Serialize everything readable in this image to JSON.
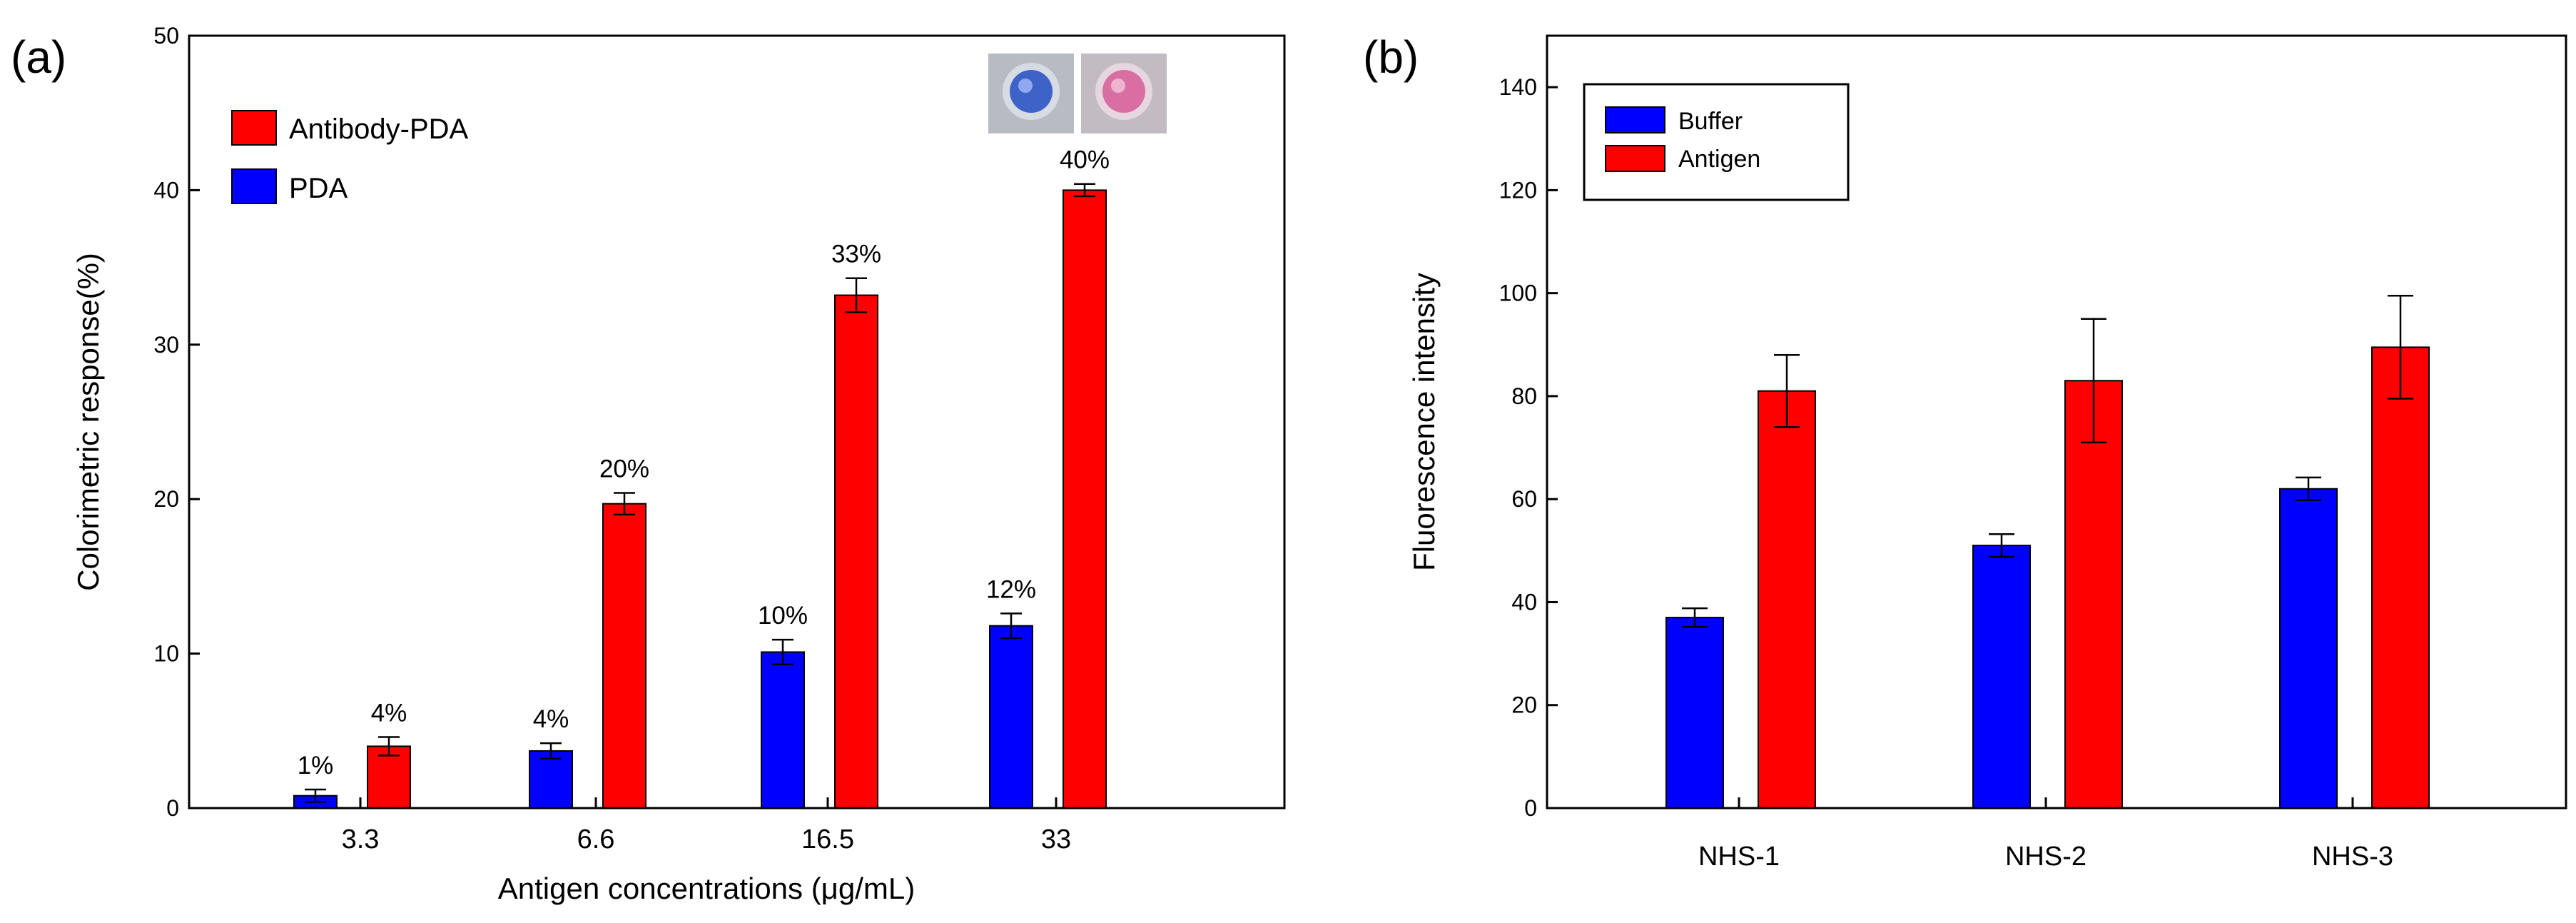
{
  "chart_data": [
    {
      "panel": "(a)",
      "type": "bar",
      "xlabel": "Antigen concentrations  (μg/mL)",
      "ylabel": "Colorimetric response(%)",
      "ylim": [
        0,
        50
      ],
      "yticks": [
        0,
        10,
        20,
        30,
        40,
        50
      ],
      "categories": [
        "3.3",
        "6.6",
        "16.5",
        "33"
      ],
      "series": [
        {
          "name": "PDA",
          "color": "#0000ff",
          "values": [
            0.8,
            3.7,
            10.1,
            11.8
          ],
          "errors": [
            0.4,
            0.5,
            0.8,
            0.8
          ],
          "labels": [
            "1%",
            "4%",
            "10%",
            "12%"
          ]
        },
        {
          "name": "Antibody-PDA",
          "color": "#ff0000",
          "values": [
            4.0,
            19.7,
            33.2,
            40.0
          ],
          "errors": [
            0.6,
            0.7,
            1.1,
            0.4
          ],
          "labels": [
            "4%",
            "20%",
            "33%",
            "40%"
          ]
        }
      ],
      "legend": [
        "Antibody-PDA",
        "PDA"
      ],
      "legend_position": "top-left",
      "inset": "photo of two wells: blue (PDA) and pink (Antibody-PDA)"
    },
    {
      "panel": "(b)",
      "type": "bar",
      "xlabel": "",
      "ylabel": "Fluorescence intensity",
      "ylim": [
        0,
        150
      ],
      "yticks": [
        0,
        20,
        40,
        60,
        80,
        100,
        120,
        140
      ],
      "categories": [
        "NHS-1",
        "NHS-2",
        "NHS-3"
      ],
      "series": [
        {
          "name": "Buffer",
          "color": "#0000ff",
          "values": [
            37,
            51,
            62
          ],
          "errors": [
            1.8,
            2.2,
            2.2
          ]
        },
        {
          "name": "Antigen",
          "color": "#ff0000",
          "values": [
            81,
            83,
            89.5
          ],
          "errors": [
            7,
            12,
            10
          ]
        }
      ],
      "legend": [
        "Buffer",
        "Antigen"
      ],
      "legend_position": "top-left"
    }
  ]
}
